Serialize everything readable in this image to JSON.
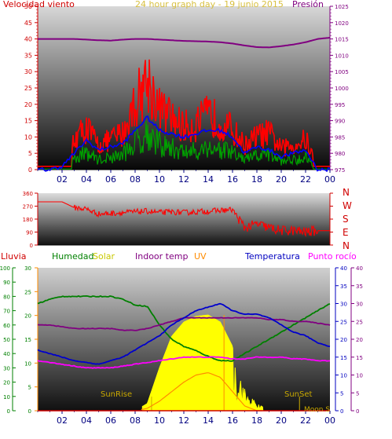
{
  "title": "24 hour graph day - 19 junio 2015",
  "colors": {
    "wind": "#ff0000",
    "gust": "#ff0000",
    "avg": "#0000ff",
    "press": "#800080",
    "dir": "#ff0000",
    "hum": "#008000",
    "solar": "#ffff00",
    "uv": "#ff8c00",
    "temp": "#0000cc",
    "dew": "#ff00ff",
    "sun": "#ccaa00"
  },
  "top": {
    "left_label": "Velocidad viento",
    "right_label": "Presión"
  },
  "mid": {
    "compass": [
      "N",
      "W",
      "S",
      "E",
      "N"
    ]
  },
  "bottom": {
    "legend": {
      "rain": "Lluvia",
      "hum": "Humedad",
      "solar": "Solar",
      "indoor": "Indoor temp",
      "uv": "UV",
      "temp": "Temperatura",
      "dew": "Punto rocío"
    },
    "sunrise": "SunRise",
    "sunset": "SunSet",
    "moon": "Moon S"
  },
  "chart_data": [
    {
      "type": "line",
      "name": "wind-pressure",
      "title": "24 hour graph day - 19 junio 2015",
      "x_ticks": [
        "02",
        "04",
        "06",
        "08",
        "10",
        "12",
        "14",
        "16",
        "18",
        "20",
        "22",
        "00"
      ],
      "ylim_left": [
        0,
        50
      ],
      "yticks_left": [
        0,
        5,
        10,
        15,
        20,
        25,
        30,
        35,
        40,
        45,
        50
      ],
      "ylim_right": [
        975,
        1025
      ],
      "yticks_right": [
        975,
        980,
        985,
        990,
        995,
        1000,
        1005,
        1010,
        1015,
        1020,
        1025
      ],
      "hours": [
        0,
        1,
        2,
        3,
        4,
        5,
        6,
        7,
        8,
        9,
        10,
        11,
        12,
        13,
        14,
        15,
        16,
        17,
        18,
        19,
        20,
        21,
        22,
        23,
        24
      ],
      "series": [
        {
          "name": "Velocidad viento",
          "axis": "left",
          "values": [
            1,
            1,
            2,
            10,
            14,
            8,
            10,
            12,
            22,
            30,
            20,
            17,
            14,
            15,
            18,
            16,
            13,
            8,
            11,
            12,
            7,
            8,
            10,
            1,
            1
          ]
        },
        {
          "name": "avg",
          "axis": "left",
          "values": [
            0,
            0,
            1,
            5,
            9,
            6,
            7,
            8,
            12,
            16,
            12,
            11,
            10,
            11,
            12,
            12,
            10,
            5,
            7,
            6,
            4,
            5,
            6,
            0,
            0
          ]
        },
        {
          "name": "Presión",
          "axis": "right",
          "values": [
            1015,
            1015,
            1015,
            1015,
            1014.8,
            1014.6,
            1014.5,
            1014.8,
            1015,
            1015,
            1014.8,
            1014.6,
            1014.4,
            1014.3,
            1014.2,
            1014,
            1013.6,
            1013,
            1012.5,
            1012.4,
            1012.8,
            1013.3,
            1014,
            1015,
            1015.4
          ]
        }
      ]
    },
    {
      "type": "line",
      "name": "wind-direction",
      "ylim": [
        0,
        360
      ],
      "yticks": [
        0,
        90,
        180,
        270,
        360
      ],
      "hours": [
        0,
        1,
        2,
        3,
        4,
        5,
        6,
        7,
        8,
        9,
        10,
        11,
        12,
        13,
        14,
        15,
        16,
        17,
        18,
        19,
        20,
        21,
        22,
        23,
        24
      ],
      "series": [
        {
          "name": "dir",
          "values": [
            300,
            300,
            300,
            260,
            250,
            215,
            220,
            225,
            230,
            235,
            225,
            230,
            225,
            230,
            235,
            240,
            245,
            120,
            145,
            120,
            100,
            100,
            90,
            100,
            100
          ]
        }
      ]
    },
    {
      "type": "line",
      "name": "temp-humidity-solar",
      "ylim_left": [
        0,
        100
      ],
      "yticks_left": [
        0,
        10,
        20,
        30,
        40,
        50,
        60,
        70,
        80,
        90,
        100
      ],
      "ylim_left2": [
        0,
        30
      ],
      "yticks_left2": [
        0,
        5,
        10,
        15,
        20,
        25,
        30
      ],
      "ylim_right": [
        0,
        40
      ],
      "yticks_right": [
        0,
        5,
        10,
        15,
        20,
        25,
        30,
        35,
        40
      ],
      "hours": [
        0,
        1,
        2,
        3,
        4,
        5,
        6,
        7,
        8,
        9,
        10,
        11,
        12,
        13,
        14,
        15,
        16,
        17,
        18,
        19,
        20,
        21,
        22,
        23,
        24
      ],
      "series": [
        {
          "name": "Humedad",
          "axis": "left",
          "values": [
            75,
            78,
            80,
            80,
            80,
            80,
            80,
            78,
            74,
            73,
            60,
            50,
            45,
            42,
            38,
            35,
            35,
            40,
            45,
            50,
            55,
            60,
            65,
            70,
            75
          ]
        },
        {
          "name": "Solar",
          "axis": "left",
          "values": [
            0,
            0,
            0,
            0,
            0,
            0,
            0,
            0,
            0,
            5,
            30,
            52,
            62,
            66,
            67,
            62,
            45,
            15,
            5,
            0,
            0,
            0,
            0,
            0,
            0
          ]
        },
        {
          "name": "Indoor temp",
          "axis": "right",
          "values": [
            24,
            24,
            23.5,
            23,
            23,
            23,
            23,
            22.5,
            22.5,
            23,
            24,
            25,
            26,
            26,
            26,
            26,
            26,
            26,
            26,
            25.5,
            25.5,
            25,
            25,
            24.5,
            24
          ]
        },
        {
          "name": "UV",
          "axis": "left2",
          "values": [
            0,
            0,
            0,
            0,
            0,
            0,
            0,
            0,
            0,
            0.5,
            2,
            4,
            6,
            7.5,
            8,
            7,
            4,
            1,
            0,
            0,
            0,
            0,
            0,
            0,
            0
          ]
        },
        {
          "name": "Temperatura",
          "axis": "right",
          "values": [
            17,
            16,
            15,
            14,
            13.5,
            13,
            14,
            15,
            17,
            19,
            21,
            24,
            26,
            28,
            29,
            30,
            28,
            27,
            27,
            26,
            24,
            22,
            21,
            19,
            18
          ]
        },
        {
          "name": "Punto rocío",
          "axis": "right",
          "values": [
            14,
            13.5,
            13,
            12.5,
            12,
            12,
            12,
            12.5,
            13,
            13.5,
            14,
            14.5,
            15,
            15,
            15,
            15,
            14.5,
            14.5,
            15,
            15,
            15,
            14.5,
            14.5,
            14,
            14
          ]
        },
        {
          "name": "Lluvia",
          "axis": "left",
          "values": [
            0,
            0,
            0,
            0,
            0,
            0,
            0,
            0,
            0,
            0,
            0,
            0,
            0,
            0,
            0,
            0,
            0,
            0,
            0,
            0,
            0,
            0,
            0,
            0,
            0
          ]
        }
      ]
    }
  ]
}
